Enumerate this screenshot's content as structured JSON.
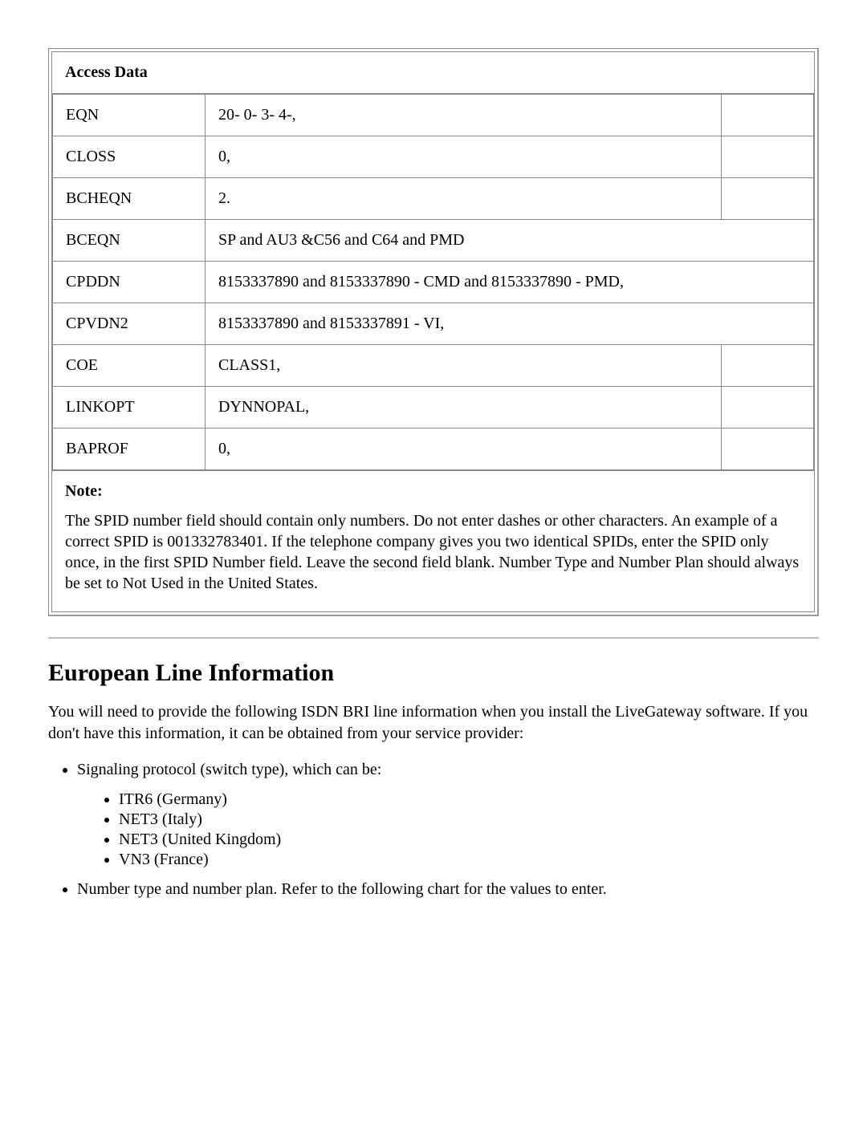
{
  "table": {
    "title": "Access Data",
    "rows": [
      {
        "key": "EQN",
        "val": "20- 0- 3- 4-,",
        "three": true
      },
      {
        "key": "CLOSS",
        "val": "0,",
        "three": true
      },
      {
        "key": "BCHEQN",
        "val": "2.",
        "three": true
      },
      {
        "key": "BCEQN",
        "val": "SP and AU3 &C56 and C64 and PMD",
        "three": false
      },
      {
        "key": "CPDDN",
        "val": "8153337890 and 8153337890 - CMD and 8153337890 - PMD,",
        "three": false
      },
      {
        "key": "CPVDN2",
        "val": "8153337890 and 8153337891 - VI,",
        "three": false
      },
      {
        "key": "COE",
        "val": "CLASS1,",
        "three": true
      },
      {
        "key": "LINKOPT",
        "val": "DYNNOPAL,",
        "three": true
      },
      {
        "key": "BAPROF",
        "val": "0,",
        "three": true
      }
    ],
    "note_label": "Note:",
    "note_text": "The SPID number field should contain only numbers. Do not enter dashes or other characters. An example of a correct SPID is 001332783401. If the telephone company gives you two identical SPIDs, enter the SPID only once, in the first SPID Number field. Leave the second field blank. Number Type and Number Plan should always be set to Not Used in the United States."
  },
  "section": {
    "heading": "European Line Information",
    "intro": "You will need to provide the following ISDN BRI line information when you install the LiveGateway software. If you don't have this information, it can be obtained from your service provider:",
    "items": [
      {
        "text": "Signaling protocol (switch type), which can be:",
        "sub": [
          "ITR6 (Germany)",
          "NET3 (Italy)",
          "NET3 (United Kingdom)",
          "VN3 (France)"
        ]
      },
      {
        "text": "Number type and number plan. Refer to the following chart for the values to enter.",
        "sub": []
      }
    ]
  }
}
